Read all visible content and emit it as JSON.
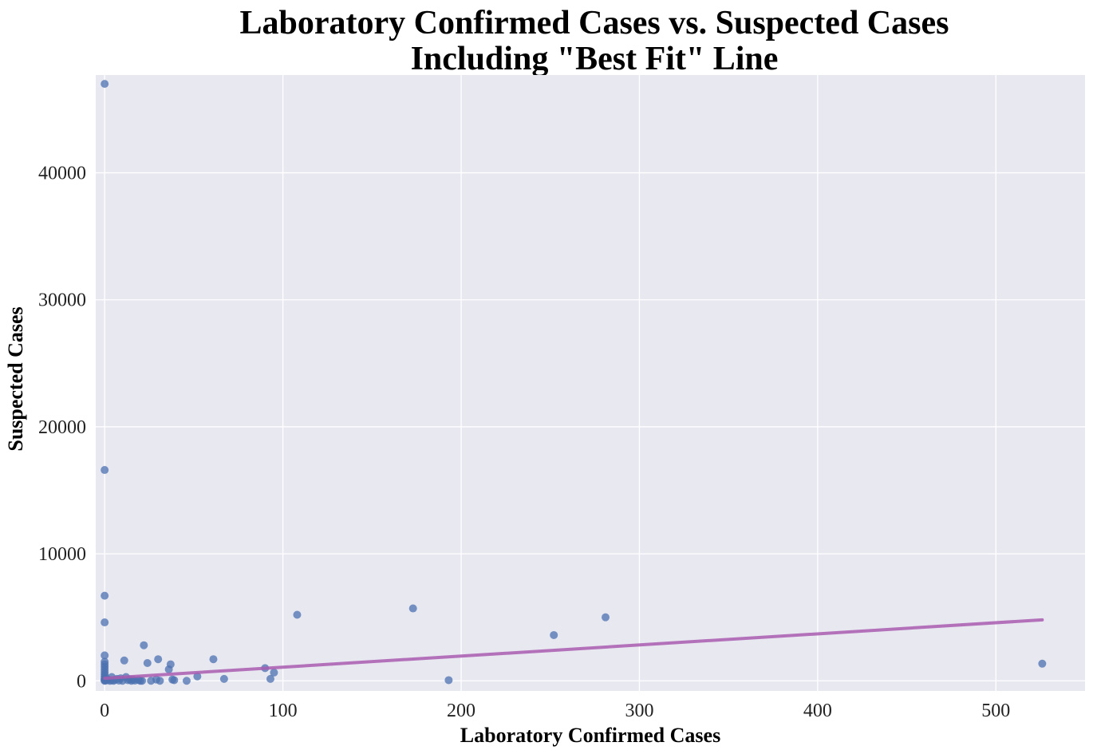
{
  "chart_data": {
    "type": "scatter",
    "title_lines": [
      "Laboratory Confirmed Cases vs. Suspected Cases",
      "Including \"Best Fit\" Line"
    ],
    "xlabel": "Laboratory Confirmed Cases",
    "ylabel": "Suspected Cases",
    "xlim": [
      -5,
      550
    ],
    "ylim": [
      -800,
      47700
    ],
    "x_ticks": [
      0,
      100,
      200,
      300,
      400,
      500
    ],
    "y_ticks": [
      0,
      10000,
      20000,
      30000,
      40000
    ],
    "grid": true,
    "colors": {
      "points": "#4c72b0",
      "fit_line": "#a95cb0",
      "plot_bg": "#e8e8f1",
      "grid": "#ffffff"
    },
    "points": [
      [
        0,
        47000
      ],
      [
        0,
        16600
      ],
      [
        0,
        6700
      ],
      [
        0,
        4600
      ],
      [
        0,
        2000
      ],
      [
        0,
        1500
      ],
      [
        0,
        1300
      ],
      [
        0,
        1100
      ],
      [
        0,
        900
      ],
      [
        0,
        700
      ],
      [
        0,
        500
      ],
      [
        0,
        350
      ],
      [
        0,
        200
      ],
      [
        0,
        100
      ],
      [
        0,
        50
      ],
      [
        0,
        0
      ],
      [
        1,
        30
      ],
      [
        2,
        100
      ],
      [
        3,
        0
      ],
      [
        4,
        300
      ],
      [
        4,
        50
      ],
      [
        5,
        0
      ],
      [
        6,
        80
      ],
      [
        7,
        150
      ],
      [
        8,
        20
      ],
      [
        9,
        200
      ],
      [
        10,
        0
      ],
      [
        11,
        1600
      ],
      [
        12,
        300
      ],
      [
        13,
        50
      ],
      [
        14,
        100
      ],
      [
        15,
        0
      ],
      [
        16,
        80
      ],
      [
        17,
        20
      ],
      [
        19,
        60
      ],
      [
        20,
        0
      ],
      [
        21,
        0
      ],
      [
        22,
        2800
      ],
      [
        24,
        1400
      ],
      [
        26,
        0
      ],
      [
        29,
        100
      ],
      [
        30,
        1700
      ],
      [
        31,
        0
      ],
      [
        36,
        900
      ],
      [
        37,
        1300
      ],
      [
        38,
        100
      ],
      [
        39,
        50
      ],
      [
        46,
        0
      ],
      [
        52,
        350
      ],
      [
        61,
        1700
      ],
      [
        67,
        150
      ],
      [
        90,
        1000
      ],
      [
        93,
        150
      ],
      [
        95,
        650
      ],
      [
        108,
        5200
      ],
      [
        173,
        5700
      ],
      [
        193,
        50
      ],
      [
        252,
        3600
      ],
      [
        281,
        5000
      ],
      [
        526,
        1350
      ]
    ],
    "fit_line": {
      "x": [
        0,
        526
      ],
      "y": [
        200,
        4800
      ]
    }
  }
}
